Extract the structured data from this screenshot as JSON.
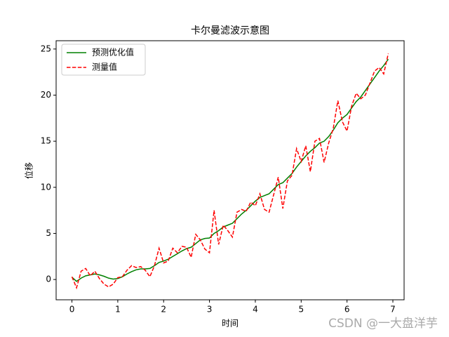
{
  "chart_data": {
    "type": "line",
    "title": "卡尔曼滤波示意图",
    "xlabel": "时间",
    "ylabel": "位移",
    "annotation": "CSDN @一大盘洋芋",
    "x": [
      0,
      0.1,
      0.2,
      0.3,
      0.4,
      0.5,
      0.6,
      0.7,
      0.8,
      0.9,
      1,
      1.1,
      1.2,
      1.3,
      1.4,
      1.5,
      1.6,
      1.7,
      1.8,
      1.9,
      2,
      2.1,
      2.2,
      2.3,
      2.4,
      2.5,
      2.6,
      2.7,
      2.8,
      2.9,
      3,
      3.1,
      3.2,
      3.3,
      3.4,
      3.5,
      3.6,
      3.7,
      3.8,
      3.9,
      4,
      4.1,
      4.2,
      4.3,
      4.4,
      4.5,
      4.6,
      4.7,
      4.8,
      4.9,
      5,
      5.1,
      5.2,
      5.3,
      5.4,
      5.5,
      5.6,
      5.7,
      5.8,
      5.9,
      6,
      6.1,
      6.2,
      6.3,
      6.4,
      6.5,
      6.6,
      6.7,
      6.8,
      6.9
    ],
    "series": [
      {
        "name": "预测优化值",
        "color": "#008000",
        "dash": "solid",
        "values": [
          0.25,
          -0.2,
          0.15,
          0.4,
          0.5,
          0.6,
          0.5,
          0.35,
          0.15,
          0.05,
          0.1,
          0.3,
          0.6,
          0.85,
          1.05,
          1.15,
          1.15,
          1.2,
          1.5,
          1.85,
          2.0,
          2.2,
          2.5,
          2.8,
          3.1,
          3.35,
          3.5,
          3.9,
          4.3,
          4.45,
          4.5,
          5.0,
          5.3,
          5.7,
          5.9,
          6.1,
          6.6,
          7.1,
          7.5,
          8.0,
          8.5,
          8.9,
          9.1,
          9.3,
          9.8,
          10.3,
          10.5,
          11.0,
          11.5,
          12.2,
          12.8,
          13.4,
          13.9,
          14.3,
          14.8,
          15.0,
          15.5,
          16.2,
          17.0,
          17.5,
          17.9,
          18.6,
          19.3,
          19.8,
          20.5,
          21.2,
          21.9,
          22.6,
          23.2,
          23.9
        ]
      },
      {
        "name": "测量值",
        "color": "#ff0000",
        "dash": "dashed",
        "values": [
          0.3,
          -0.9,
          0.9,
          1.2,
          0.4,
          0.9,
          0.1,
          -0.5,
          -0.8,
          -0.5,
          0.2,
          0.3,
          1.0,
          1.5,
          1.3,
          1.4,
          1.0,
          0.3,
          1.5,
          3.4,
          1.8,
          2.0,
          3.4,
          2.9,
          3.6,
          3.5,
          2.4,
          4.9,
          4.3,
          3.3,
          2.9,
          7.5,
          3.8,
          5.9,
          5.3,
          4.6,
          7.3,
          7.6,
          7.4,
          8.4,
          8.0,
          9.3,
          7.6,
          7.3,
          9.2,
          11.1,
          7.7,
          10.7,
          11.3,
          14.2,
          12.8,
          14.5,
          11.7,
          15.0,
          15.3,
          12.7,
          14.8,
          16.4,
          19.4,
          17.1,
          16.1,
          18.8,
          20.2,
          19.6,
          20.0,
          21.3,
          22.6,
          23.0,
          22.3,
          24.5
        ]
      }
    ],
    "xlim": [
      -0.345,
      7.245
    ],
    "xticks": [
      0,
      1,
      2,
      3,
      4,
      5,
      6,
      7
    ],
    "ylim": [
      -2.2,
      25.9
    ],
    "yticks": [
      0,
      5,
      10,
      15,
      20,
      25
    ],
    "grid": false,
    "legend": "upper left"
  }
}
